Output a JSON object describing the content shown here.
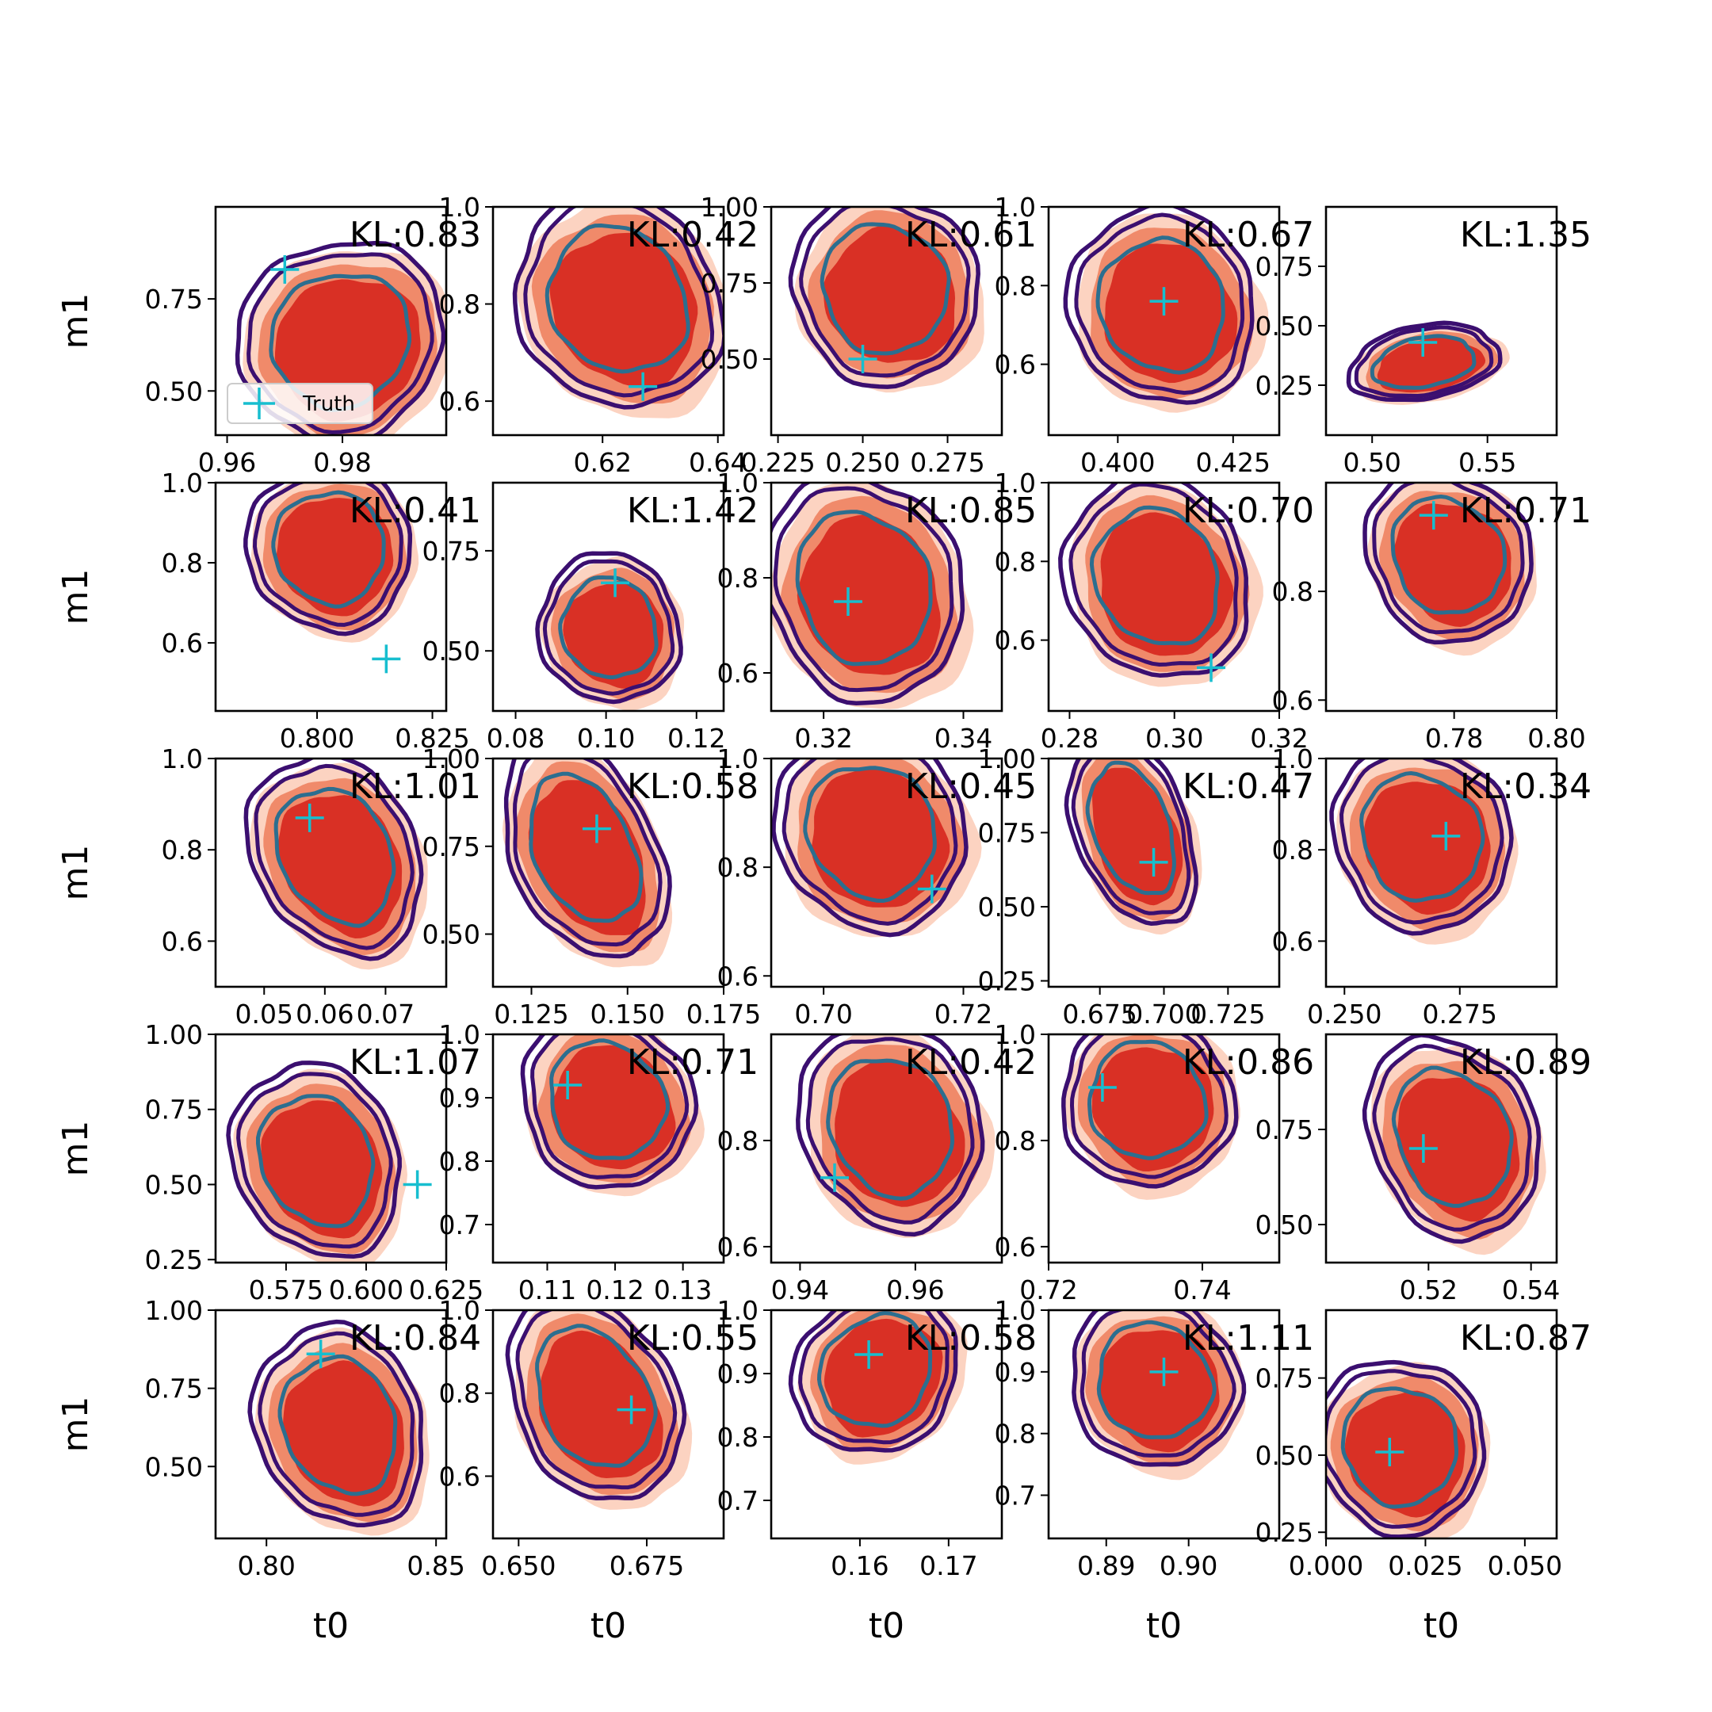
{
  "chart_data": {
    "type": "contour-grid",
    "rows": 5,
    "cols": 5,
    "xlabel": "t0",
    "ylabel": "m1",
    "legend": {
      "label": "Truth",
      "placement": "lower-left of first panel"
    },
    "colors": {
      "truth": "#17becf",
      "fill_inner": "#d93025",
      "fill_mid": "#f08a6a",
      "fill_outer": "#fcd3c1",
      "contour_outer": "#3b0f70",
      "contour_inner": "#2c6e8f"
    },
    "panels": [
      {
        "kl": "KL:0.83",
        "xlim": [
          0.958,
          0.998
        ],
        "ylim": [
          0.38,
          1.0
        ],
        "xticks": [
          "0.96",
          "0.98"
        ],
        "xtv": [
          0.96,
          0.98
        ],
        "yticks": [
          "0.75",
          "0.50"
        ],
        "ytv": [
          0.75,
          0.5
        ],
        "truth": [
          0.97,
          0.83
        ],
        "center": [
          0.98,
          0.63
        ],
        "sx": 0.0165,
        "sy": 0.24,
        "rot": -32,
        "legend": true
      },
      {
        "kl": "KL:0.42",
        "xlim": [
          0.601,
          0.641
        ],
        "ylim": [
          0.53,
          1.0
        ],
        "xticks": [
          "0.62",
          "0.64"
        ],
        "xtv": [
          0.62,
          0.64
        ],
        "yticks": [
          "1.0",
          "0.8",
          "0.6"
        ],
        "ytv": [
          1.0,
          0.8,
          0.6
        ],
        "truth": [
          0.627,
          0.63
        ],
        "center": [
          0.623,
          0.8
        ],
        "sx": 0.0155,
        "sy": 0.21,
        "rot": -35
      },
      {
        "kl": "KL:0.61",
        "xlim": [
          0.223,
          0.291
        ],
        "ylim": [
          0.25,
          1.0
        ],
        "xticks": [
          "0.225",
          "0.250",
          "0.275"
        ],
        "xtv": [
          0.225,
          0.25,
          0.275
        ],
        "yticks": [
          "1.00",
          "0.75",
          "0.50"
        ],
        "ytv": [
          1.0,
          0.75,
          0.5
        ],
        "truth": [
          0.25,
          0.5
        ],
        "center": [
          0.257,
          0.72
        ],
        "sx": 0.0245,
        "sy": 0.29,
        "rot": -30
      },
      {
        "kl": "KL:0.67",
        "xlim": [
          0.385,
          0.435
        ],
        "ylim": [
          0.42,
          1.0
        ],
        "xticks": [
          "0.400",
          "0.425"
        ],
        "xtv": [
          0.4,
          0.425
        ],
        "yticks": [
          "1.0",
          "0.8",
          "0.6"
        ],
        "ytv": [
          1.0,
          0.8,
          0.6
        ],
        "truth": [
          0.41,
          0.76
        ],
        "center": [
          0.41,
          0.74
        ],
        "sx": 0.018,
        "sy": 0.23,
        "rot": -28
      },
      {
        "kl": "KL:1.35",
        "xlim": [
          0.48,
          0.58
        ],
        "ylim": [
          0.04,
          1.0
        ],
        "xticks": [
          "0.50",
          "0.55"
        ],
        "xtv": [
          0.5,
          0.55
        ],
        "yticks": [
          "0.75",
          "0.50",
          "0.25"
        ],
        "ytv": [
          0.75,
          0.5,
          0.25
        ],
        "truth": [
          0.522,
          0.43
        ],
        "center": [
          0.523,
          0.34
        ],
        "sx": 0.03,
        "sy": 0.14,
        "rot": -10
      },
      {
        "kl": "KL:0.41",
        "xlim": [
          0.778,
          0.828
        ],
        "ylim": [
          0.43,
          1.0
        ],
        "xticks": [
          "0.800",
          "0.825"
        ],
        "xtv": [
          0.8,
          0.825
        ],
        "yticks": [
          "1.0",
          "0.8",
          "0.6"
        ],
        "ytv": [
          1.0,
          0.8,
          0.6
        ],
        "truth": [
          0.815,
          0.56
        ],
        "center": [
          0.803,
          0.83
        ],
        "sx": 0.016,
        "sy": 0.19,
        "rot": -35
      },
      {
        "kl": "KL:1.42",
        "xlim": [
          0.075,
          0.126
        ],
        "ylim": [
          0.35,
          0.92
        ],
        "xticks": [
          "0.08",
          "0.10",
          "0.12"
        ],
        "xtv": [
          0.08,
          0.1,
          0.12
        ],
        "yticks": [
          "0.75",
          "0.50"
        ],
        "ytv": [
          0.75,
          0.5
        ],
        "truth": [
          0.102,
          0.67
        ],
        "center": [
          0.101,
          0.55
        ],
        "sx": 0.014,
        "sy": 0.17,
        "rot": -22
      },
      {
        "kl": "KL:0.85",
        "xlim": [
          0.3125,
          0.3455
        ],
        "ylim": [
          0.52,
          1.0
        ],
        "xticks": [
          "0.32",
          "0.34"
        ],
        "xtv": [
          0.32,
          0.34
        ],
        "yticks": [
          "1.0",
          "0.8",
          "0.6"
        ],
        "ytv": [
          1.0,
          0.8,
          0.6
        ],
        "truth": [
          0.3235,
          0.75
        ],
        "center": [
          0.326,
          0.77
        ],
        "sx": 0.0125,
        "sy": 0.22,
        "rot": -22
      },
      {
        "kl": "KL:0.70",
        "xlim": [
          0.276,
          0.32
        ],
        "ylim": [
          0.42,
          1.0
        ],
        "xticks": [
          "0.28",
          "0.30",
          "0.32"
        ],
        "xtv": [
          0.28,
          0.3,
          0.32
        ],
        "yticks": [
          "1.0",
          "0.8",
          "0.6"
        ],
        "ytv": [
          1.0,
          0.8,
          0.6
        ],
        "truth": [
          0.307,
          0.53
        ],
        "center": [
          0.297,
          0.75
        ],
        "sx": 0.0155,
        "sy": 0.24,
        "rot": -28
      },
      {
        "kl": "KL:0.71",
        "xlim": [
          0.755,
          0.8
        ],
        "ylim": [
          0.58,
          1.0
        ],
        "xticks": [
          "0.78",
          "0.80"
        ],
        "xtv": [
          0.78,
          0.8
        ],
        "yticks": [
          "0.8",
          "0.6"
        ],
        "ytv": [
          0.8,
          0.6
        ],
        "truth": [
          0.776,
          0.94
        ],
        "center": [
          0.779,
          0.86
        ],
        "sx": 0.014,
        "sy": 0.15,
        "rot": -38
      },
      {
        "kl": "KL:1.01",
        "xlim": [
          0.042,
          0.08
        ],
        "ylim": [
          0.5,
          1.0
        ],
        "xticks": [
          "0.05",
          "0.06",
          "0.07"
        ],
        "xtv": [
          0.05,
          0.06,
          0.07
        ],
        "yticks": [
          "1.0",
          "0.8",
          "0.6"
        ],
        "ytv": [
          1.0,
          0.8,
          0.6
        ],
        "truth": [
          0.0575,
          0.87
        ],
        "center": [
          0.062,
          0.78
        ],
        "sx": 0.012,
        "sy": 0.21,
        "rot": -30
      },
      {
        "kl": "KL:0.58",
        "xlim": [
          0.115,
          0.175
        ],
        "ylim": [
          0.35,
          1.0
        ],
        "xticks": [
          "0.125",
          "0.150",
          "0.175"
        ],
        "xtv": [
          0.125,
          0.15,
          0.175
        ],
        "yticks": [
          "1.00",
          "0.75",
          "0.50"
        ],
        "ytv": [
          1.0,
          0.75,
          0.5
        ],
        "truth": [
          0.142,
          0.8
        ],
        "center": [
          0.139,
          0.73
        ],
        "sx": 0.017,
        "sy": 0.3,
        "rot": -25
      },
      {
        "kl": "KL:0.45",
        "xlim": [
          0.6925,
          0.7255
        ],
        "ylim": [
          0.58,
          1.0
        ],
        "xticks": [
          "0.70",
          "0.72"
        ],
        "xtv": [
          0.7,
          0.72
        ],
        "yticks": [
          "1.0",
          "0.8",
          "0.6"
        ],
        "ytv": [
          1.0,
          0.8,
          0.6
        ],
        "truth": [
          0.7155,
          0.76
        ],
        "center": [
          0.707,
          0.86
        ],
        "sx": 0.012,
        "sy": 0.17,
        "rot": -38
      },
      {
        "kl": "KL:0.47",
        "xlim": [
          0.655,
          0.745
        ],
        "ylim": [
          0.23,
          1.0
        ],
        "xticks": [
          "0.675",
          "0.700",
          "0.725"
        ],
        "xtv": [
          0.675,
          0.7,
          0.725
        ],
        "yticks": [
          "1.00",
          "0.75",
          "0.50",
          "0.25"
        ],
        "ytv": [
          1.0,
          0.75,
          0.5,
          0.25
        ],
        "truth": [
          0.696,
          0.65
        ],
        "center": [
          0.688,
          0.75
        ],
        "sx": 0.02,
        "sy": 0.31,
        "rot": -20
      },
      {
        "kl": "KL:0.34",
        "xlim": [
          0.246,
          0.296
        ],
        "ylim": [
          0.5,
          1.0
        ],
        "xticks": [
          "0.250",
          "0.275"
        ],
        "xtv": [
          0.25,
          0.275
        ],
        "yticks": [
          "1.0",
          "0.8",
          "0.6"
        ],
        "ytv": [
          1.0,
          0.8,
          0.6
        ],
        "truth": [
          0.272,
          0.83
        ],
        "center": [
          0.267,
          0.82
        ],
        "sx": 0.017,
        "sy": 0.19,
        "rot": -32
      },
      {
        "kl": "KL:1.07",
        "xlim": [
          0.553,
          0.625
        ],
        "ylim": [
          0.24,
          1.0
        ],
        "xticks": [
          "0.575",
          "0.600",
          "0.625"
        ],
        "xtv": [
          0.575,
          0.6,
          0.625
        ],
        "yticks": [
          "1.00",
          "0.75",
          "0.50",
          "0.25"
        ],
        "ytv": [
          1.0,
          0.75,
          0.5,
          0.25
        ],
        "truth": [
          0.616,
          0.5
        ],
        "center": [
          0.585,
          0.57
        ],
        "sx": 0.023,
        "sy": 0.3,
        "rot": -25
      },
      {
        "kl": "KL:0.71",
        "xlim": [
          0.102,
          0.136
        ],
        "ylim": [
          0.64,
          1.0
        ],
        "xticks": [
          "0.11",
          "0.12",
          "0.13"
        ],
        "xtv": [
          0.11,
          0.12,
          0.13
        ],
        "yticks": [
          "1.0",
          "0.9",
          "0.8",
          "0.7"
        ],
        "ytv": [
          1.0,
          0.9,
          0.8,
          0.7
        ],
        "truth": [
          0.113,
          0.92
        ],
        "center": [
          0.119,
          0.89
        ],
        "sx": 0.011,
        "sy": 0.13,
        "rot": -40
      },
      {
        "kl": "KL:0.42",
        "xlim": [
          0.935,
          0.975
        ],
        "ylim": [
          0.57,
          1.0
        ],
        "xticks": [
          "0.94",
          "0.96"
        ],
        "xtv": [
          0.94,
          0.96
        ],
        "yticks": [
          "0.8",
          "0.6"
        ],
        "ytv": [
          0.8,
          0.6
        ],
        "truth": [
          0.946,
          0.73
        ],
        "center": [
          0.956,
          0.82
        ],
        "sx": 0.014,
        "sy": 0.18,
        "rot": -25
      },
      {
        "kl": "KL:0.86",
        "xlim": [
          0.72,
          0.75
        ],
        "ylim": [
          0.57,
          1.0
        ],
        "xticks": [
          "0.72",
          "0.74"
        ],
        "xtv": [
          0.72,
          0.74
        ],
        "yticks": [
          "1.0",
          "0.8",
          "0.6"
        ],
        "ytv": [
          1.0,
          0.8,
          0.6
        ],
        "truth": [
          0.727,
          0.9
        ],
        "center": [
          0.733,
          0.87
        ],
        "sx": 0.01,
        "sy": 0.15,
        "rot": -40
      },
      {
        "kl": "KL:0.89",
        "xlim": [
          0.5,
          0.545
        ],
        "ylim": [
          0.4,
          1.0
        ],
        "xticks": [
          "0.52",
          "0.54"
        ],
        "xtv": [
          0.52,
          0.54
        ],
        "yticks": [
          "0.75",
          "0.50"
        ],
        "ytv": [
          0.75,
          0.5
        ],
        "truth": [
          0.519,
          0.7
        ],
        "center": [
          0.525,
          0.72
        ],
        "sx": 0.0145,
        "sy": 0.25,
        "rot": -25
      },
      {
        "kl": "KL:0.84",
        "xlim": [
          0.785,
          0.853
        ],
        "ylim": [
          0.27,
          1.0
        ],
        "xticks": [
          "0.80",
          "0.85"
        ],
        "xtv": [
          0.8,
          0.85
        ],
        "yticks": [
          "1.00",
          "0.75",
          "0.50"
        ],
        "ytv": [
          1.0,
          0.75,
          0.5
        ],
        "truth": [
          0.816,
          0.86
        ],
        "center": [
          0.822,
          0.62
        ],
        "sx": 0.022,
        "sy": 0.3,
        "rot": -22
      },
      {
        "kl": "KL:0.55",
        "xlim": [
          0.645,
          0.69
        ],
        "ylim": [
          0.45,
          1.0
        ],
        "xticks": [
          "0.650",
          "0.675"
        ],
        "xtv": [
          0.65,
          0.675
        ],
        "yticks": [
          "1.0",
          "0.8",
          "0.6"
        ],
        "ytv": [
          1.0,
          0.8,
          0.6
        ],
        "truth": [
          0.672,
          0.76
        ],
        "center": [
          0.665,
          0.78
        ],
        "sx": 0.014,
        "sy": 0.24,
        "rot": -28
      },
      {
        "kl": "KL:0.58",
        "xlim": [
          0.15,
          0.176
        ],
        "ylim": [
          0.64,
          1.0
        ],
        "xticks": [
          "0.16",
          "0.17"
        ],
        "xtv": [
          0.16,
          0.17
        ],
        "yticks": [
          "1.0",
          "0.9",
          "0.8",
          "0.7"
        ],
        "ytv": [
          1.0,
          0.9,
          0.8,
          0.7
        ],
        "truth": [
          0.161,
          0.93
        ],
        "center": [
          0.162,
          0.9
        ],
        "sx": 0.009,
        "sy": 0.11,
        "rot": -45
      },
      {
        "kl": "KL:1.11",
        "xlim": [
          0.883,
          0.911
        ],
        "ylim": [
          0.63,
          1.0
        ],
        "xticks": [
          "0.89",
          "0.90"
        ],
        "xtv": [
          0.89,
          0.9
        ],
        "yticks": [
          "1.0",
          "0.9",
          "0.8",
          "0.7"
        ],
        "ytv": [
          1.0,
          0.9,
          0.8,
          0.7
        ],
        "truth": [
          0.897,
          0.9
        ],
        "center": [
          0.896,
          0.88
        ],
        "sx": 0.009,
        "sy": 0.13,
        "rot": -40
      },
      {
        "kl": "KL:0.87",
        "xlim": [
          0.0,
          0.058
        ],
        "ylim": [
          0.23,
          0.97
        ],
        "xticks": [
          "0.000",
          "0.025",
          "0.050"
        ],
        "xtv": [
          0.0,
          0.025,
          0.05
        ],
        "yticks": [
          "0.75",
          "0.50",
          "0.25"
        ],
        "ytv": [
          0.75,
          0.5,
          0.25
        ],
        "truth": [
          0.016,
          0.51
        ],
        "center": [
          0.019,
          0.52
        ],
        "sx": 0.019,
        "sy": 0.26,
        "rot": -28
      }
    ]
  }
}
